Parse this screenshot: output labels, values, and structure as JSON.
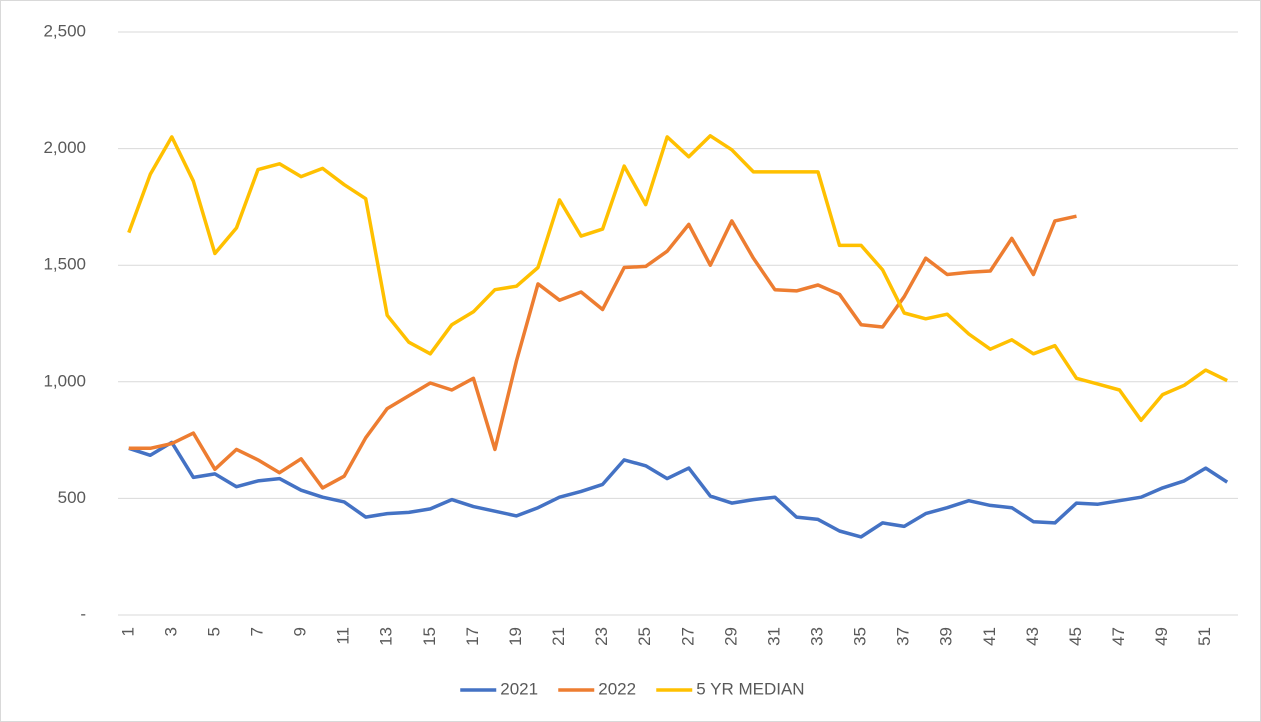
{
  "chart_data": {
    "type": "line",
    "categories": [
      "1",
      null,
      "3",
      null,
      "5",
      null,
      "7",
      null,
      "9",
      null,
      "11",
      null,
      "13",
      null,
      "15",
      null,
      "17",
      null,
      "19",
      null,
      "21",
      null,
      "23",
      null,
      "25",
      null,
      "27",
      null,
      "29",
      null,
      "31",
      null,
      "33",
      null,
      "35",
      null,
      "37",
      null,
      "39",
      null,
      "41",
      null,
      "43",
      null,
      "45",
      null,
      "47",
      null,
      "49",
      null,
      "51",
      null
    ],
    "series": [
      {
        "name": "2021",
        "color": "#4472c4",
        "values": [
          715,
          685,
          740,
          590,
          605,
          550,
          575,
          585,
          535,
          505,
          485,
          420,
          435,
          440,
          455,
          495,
          465,
          445,
          425,
          460,
          505,
          530,
          560,
          665,
          640,
          585,
          630,
          510,
          480,
          495,
          505,
          420,
          410,
          360,
          335,
          395,
          380,
          435,
          460,
          490,
          470,
          460,
          400,
          395,
          480,
          475,
          490,
          505,
          545,
          575,
          630,
          570
        ]
      },
      {
        "name": "2022",
        "color": "#ed7d31",
        "values": [
          715,
          715,
          735,
          780,
          625,
          710,
          665,
          610,
          670,
          545,
          595,
          760,
          885,
          940,
          995,
          965,
          1015,
          710,
          1090,
          1420,
          1350,
          1385,
          1310,
          1490,
          1495,
          1560,
          1675,
          1500,
          1690,
          1530,
          1395,
          1390,
          1415,
          1375,
          1245,
          1235,
          1365,
          1530,
          1460,
          1470,
          1475,
          1615,
          1460,
          1690,
          1710,
          null,
          null,
          null,
          null,
          null,
          null,
          null
        ]
      },
      {
        "name": "5 YR MEDIAN",
        "color": "#ffc000",
        "values": [
          1640,
          1890,
          2050,
          1860,
          1550,
          1660,
          1910,
          1935,
          1880,
          1915,
          1845,
          1785,
          1285,
          1170,
          1120,
          1245,
          1300,
          1395,
          1410,
          1490,
          1780,
          1625,
          1655,
          1925,
          1760,
          2050,
          1965,
          2055,
          1995,
          1900,
          1900,
          1900,
          1900,
          1585,
          1585,
          1480,
          1295,
          1270,
          1290,
          1205,
          1140,
          1180,
          1120,
          1155,
          1015,
          990,
          965,
          835,
          945,
          985,
          1050,
          1005
        ]
      }
    ],
    "ylim": [
      0,
      2500
    ],
    "yticks": [
      {
        "value": 0,
        "label": "-"
      },
      500,
      {
        "value": 1000,
        "label": "1,000"
      },
      {
        "value": 1500,
        "label": "1,500"
      },
      {
        "value": 2000,
        "label": "2,000"
      },
      {
        "value": 2500,
        "label": "2,500"
      }
    ],
    "grid": true,
    "legend": "bottom"
  }
}
